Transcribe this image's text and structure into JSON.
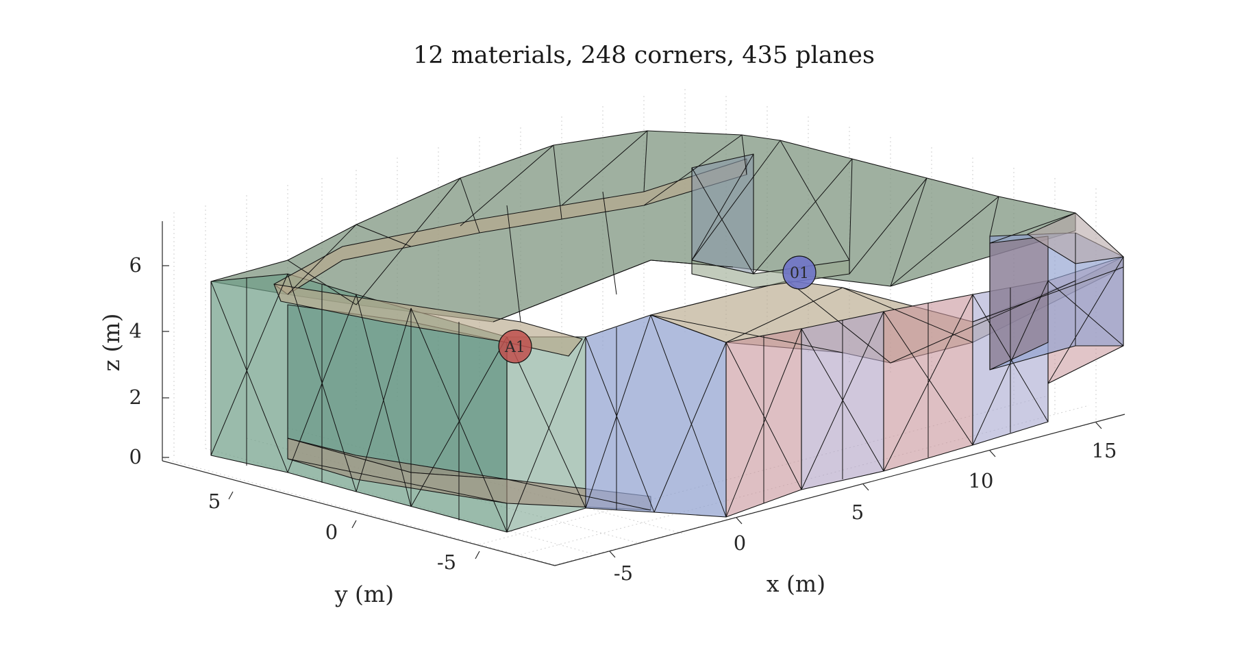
{
  "title": "12 materials, 248 corners, 435 planes",
  "axes": {
    "x_label": "x (m)",
    "y_label": "y (m)",
    "z_label": "z (m)",
    "x_ticks": [
      "-5",
      "0",
      "5",
      "10",
      "15"
    ],
    "y_ticks": [
      "5",
      "0",
      "-5"
    ],
    "z_ticks": [
      "0",
      "2",
      "4",
      "6"
    ],
    "grid": true
  },
  "markers": [
    {
      "label": "A1",
      "color": "#c0504d"
    },
    {
      "label": "01",
      "color": "#6f74c8"
    }
  ],
  "colors": {
    "green_face": "#6f9e88",
    "blue_face": "#8f9fcf",
    "tan_face": "#b8a98c",
    "pink_face": "#c8959b",
    "roof_face": "#7f9680",
    "edge": "#111111"
  }
}
